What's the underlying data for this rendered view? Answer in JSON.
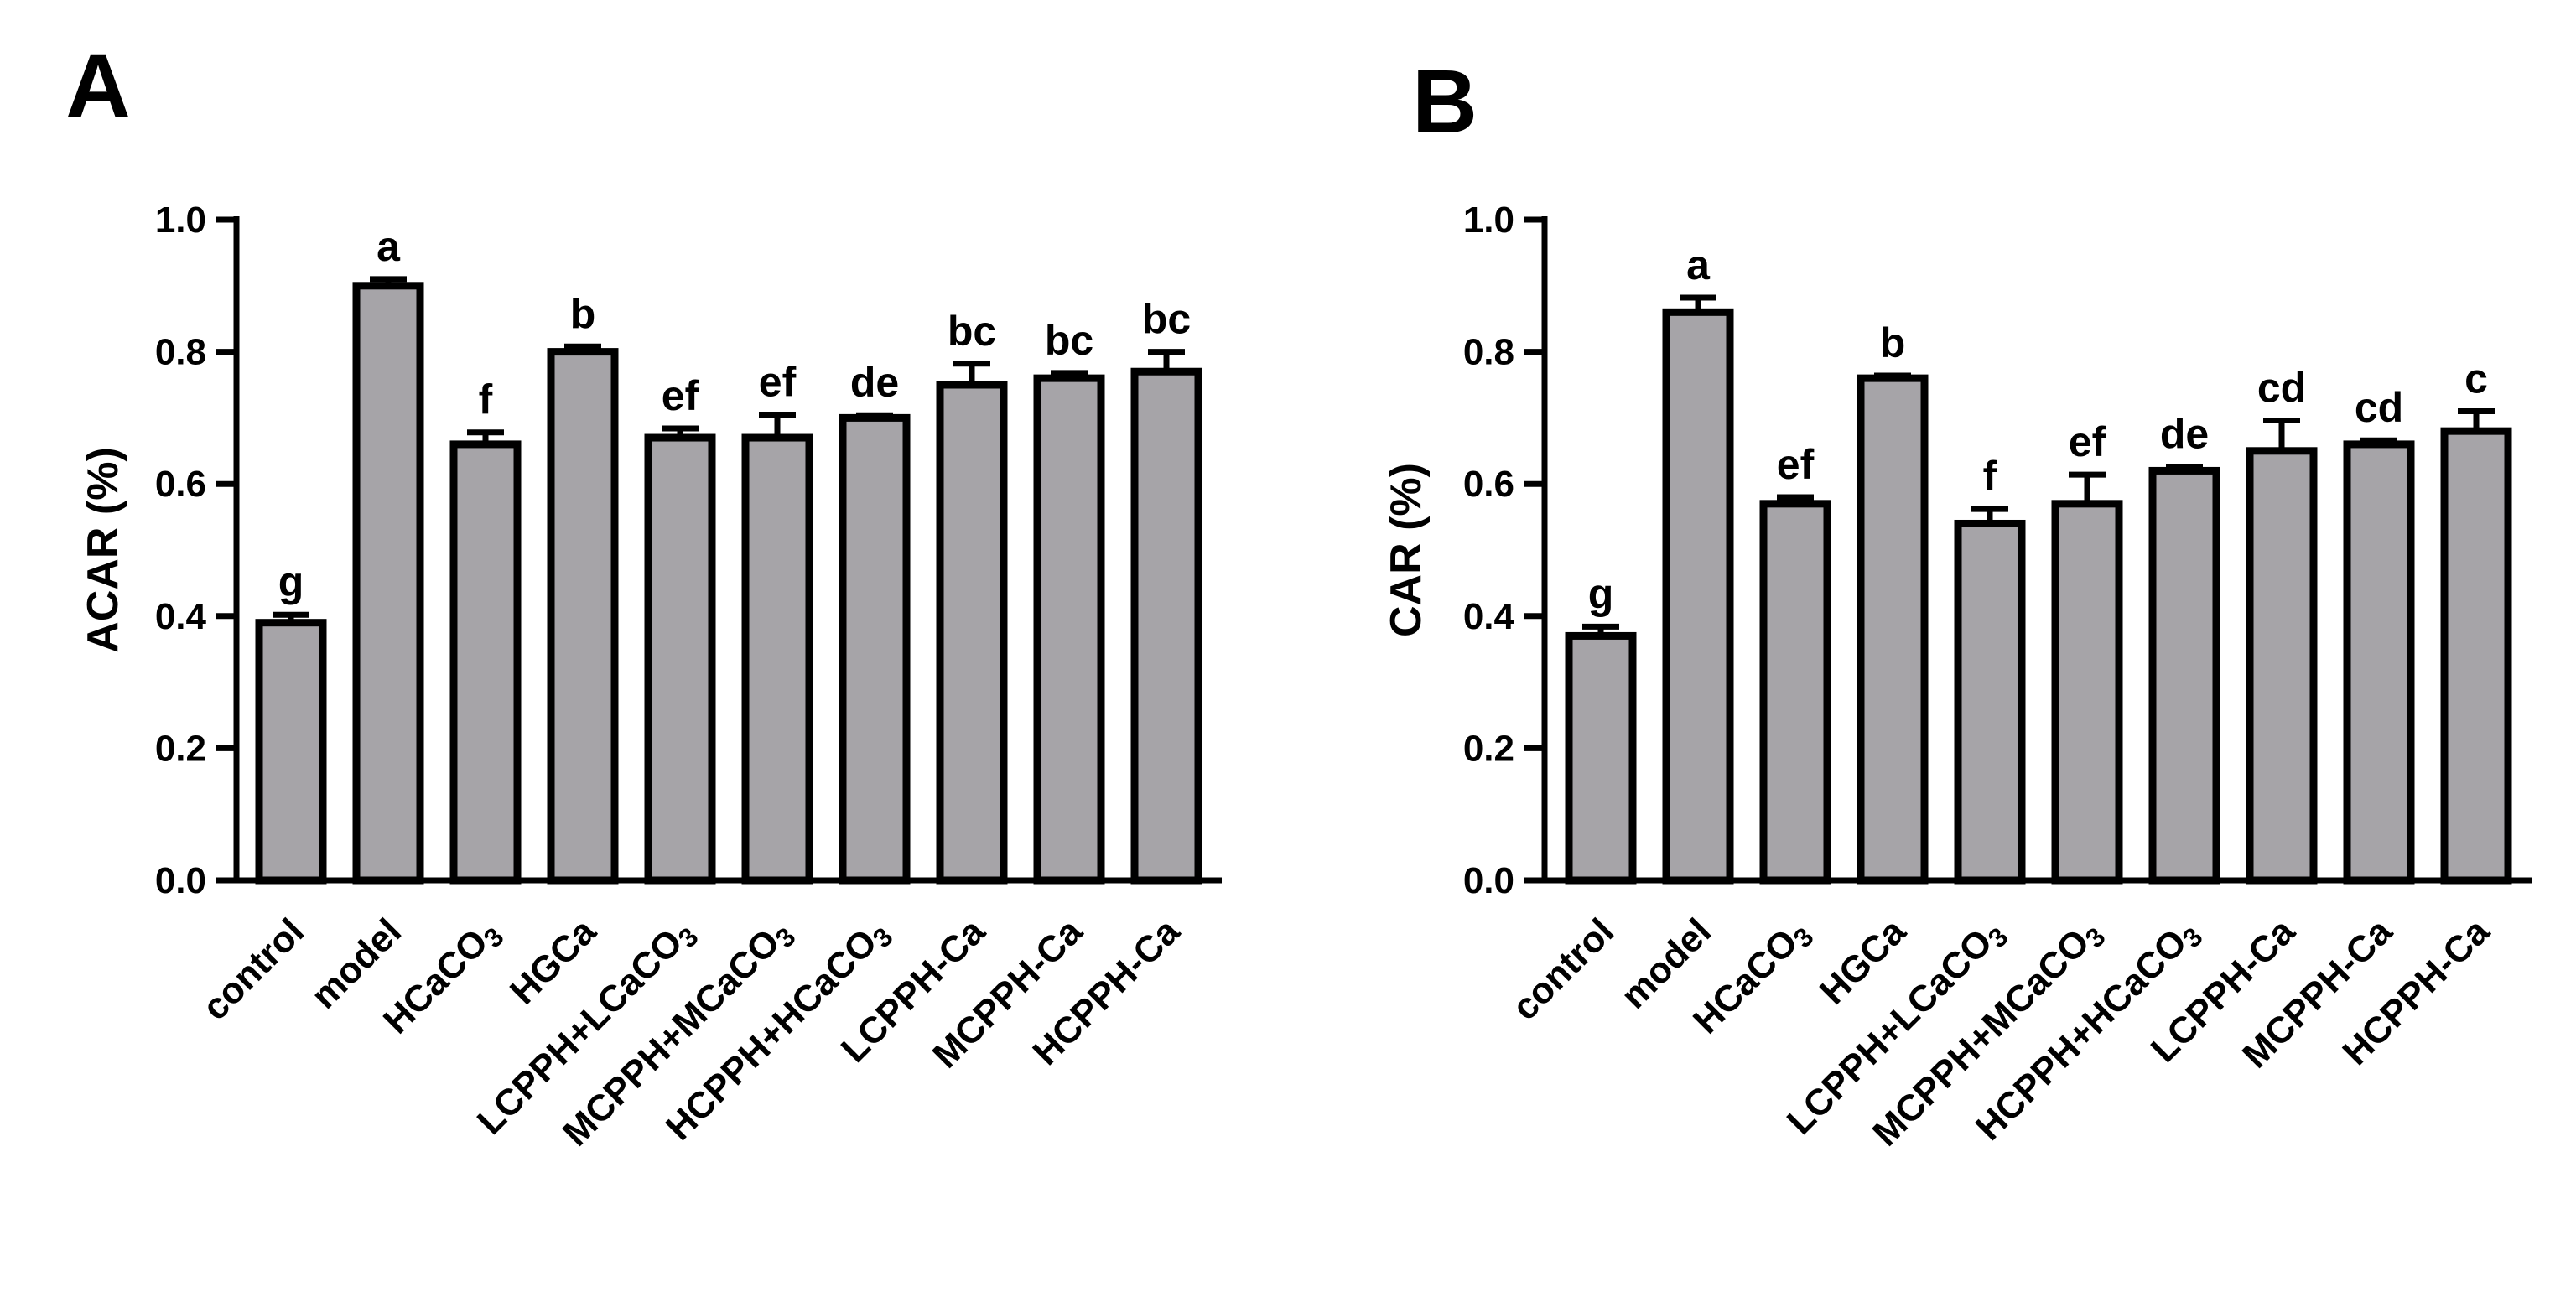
{
  "figure": {
    "background": "#ffffff",
    "bar_color": "#a6a4a8",
    "stroke_color": "#000000"
  },
  "chart_data": [
    {
      "panel": "A",
      "type": "bar",
      "ylabel": "ACAR (%)",
      "xlabel": "",
      "ylim": [
        0,
        1.0
      ],
      "yticks": [
        "0.0",
        "0.2",
        "0.4",
        "0.6",
        "0.8",
        "1.0"
      ],
      "categories": [
        {
          "main": "control",
          "sub": ""
        },
        {
          "main": "model",
          "sub": ""
        },
        {
          "main": "HCaCO",
          "sub": "3"
        },
        {
          "main": "HGCa",
          "sub": ""
        },
        {
          "main": "LCPPH+LCaCO",
          "sub": "3"
        },
        {
          "main": "MCPPH+MCaCO",
          "sub": "3"
        },
        {
          "main": "HCPPH+HCaCO",
          "sub": "3"
        },
        {
          "main": "LCPPH-Ca",
          "sub": ""
        },
        {
          "main": "MCPPH-Ca",
          "sub": ""
        },
        {
          "main": "HCPPH-Ca",
          "sub": ""
        }
      ],
      "values": [
        0.39,
        0.9,
        0.66,
        0.8,
        0.67,
        0.67,
        0.7,
        0.75,
        0.76,
        0.77
      ],
      "errors": [
        0.012,
        0.01,
        0.018,
        0.008,
        0.014,
        0.035,
        0.004,
        0.032,
        0.008,
        0.03
      ],
      "significance": [
        "g",
        "a",
        "f",
        "b",
        "ef",
        "ef",
        "de",
        "bc",
        "bc",
        "bc"
      ]
    },
    {
      "panel": "B",
      "type": "bar",
      "ylabel": "CAR (%)",
      "xlabel": "",
      "ylim": [
        0,
        1.0
      ],
      "yticks": [
        "0.0",
        "0.2",
        "0.4",
        "0.6",
        "0.8",
        "1.0"
      ],
      "categories": [
        {
          "main": "control",
          "sub": ""
        },
        {
          "main": "model",
          "sub": ""
        },
        {
          "main": "HCaCO",
          "sub": "3"
        },
        {
          "main": "HGCa",
          "sub": ""
        },
        {
          "main": "LCPPH+LCaCO",
          "sub": "3"
        },
        {
          "main": "MCPPH+MCaCO",
          "sub": "3"
        },
        {
          "main": "HCPPH+HCaCO",
          "sub": "3"
        },
        {
          "main": "LCPPH-Ca",
          "sub": ""
        },
        {
          "main": "MCPPH-Ca",
          "sub": ""
        },
        {
          "main": "HCPPH-Ca",
          "sub": ""
        }
      ],
      "values": [
        0.37,
        0.86,
        0.57,
        0.76,
        0.54,
        0.57,
        0.62,
        0.65,
        0.66,
        0.68
      ],
      "errors": [
        0.014,
        0.022,
        0.01,
        0.004,
        0.022,
        0.044,
        0.006,
        0.046,
        0.006,
        0.03
      ],
      "significance": [
        "g",
        "a",
        "ef",
        "b",
        "f",
        "ef",
        "de",
        "cd",
        "cd",
        "c"
      ]
    }
  ]
}
